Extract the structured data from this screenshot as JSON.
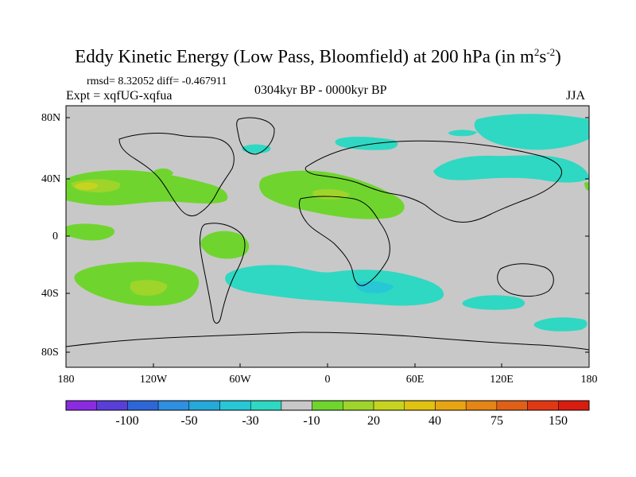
{
  "title": {
    "main": "Eddy Kinetic Energy (Low Pass, Bloomfield) at 200 hPa (in m",
    "sup1": "2",
    "mid": "s",
    "sup2": "-2",
    "close": ")"
  },
  "stats": "rmsd= 8.32052  diff= -0.467911",
  "expt": "Expt = xqfUG-xqfua",
  "period": "0304kyr BP - 0000kyr BP",
  "season": "JJA",
  "y_ticks": [
    "80N",
    "40N",
    "0",
    "40S",
    "80S"
  ],
  "x_ticks": [
    "180",
    "120W",
    "60W",
    "0",
    "60E",
    "120E",
    "180"
  ],
  "colorbar": {
    "labels": [
      "-100",
      "-50",
      "-30",
      "-10",
      "20",
      "40",
      "75",
      "150"
    ],
    "colors": [
      "#8a2be2",
      "#5a3ed8",
      "#2e66d8",
      "#2f8fe0",
      "#24a9d9",
      "#27c7d6",
      "#2fd8c2",
      "#c8c8c8",
      "#6fd52e",
      "#9fd42a",
      "#c7d41f",
      "#e0c210",
      "#e8a512",
      "#e58515",
      "#e06018",
      "#e03814",
      "#d81d10"
    ]
  },
  "colors": {
    "land_sea_bg": "#c8c8c8",
    "neg_fill": "#2fd8c2",
    "neg_strong": "#27c7d6",
    "pos_fill": "#6fd52e",
    "pos_strong": "#9fd42a",
    "pos_peak": "#c7d41f"
  }
}
